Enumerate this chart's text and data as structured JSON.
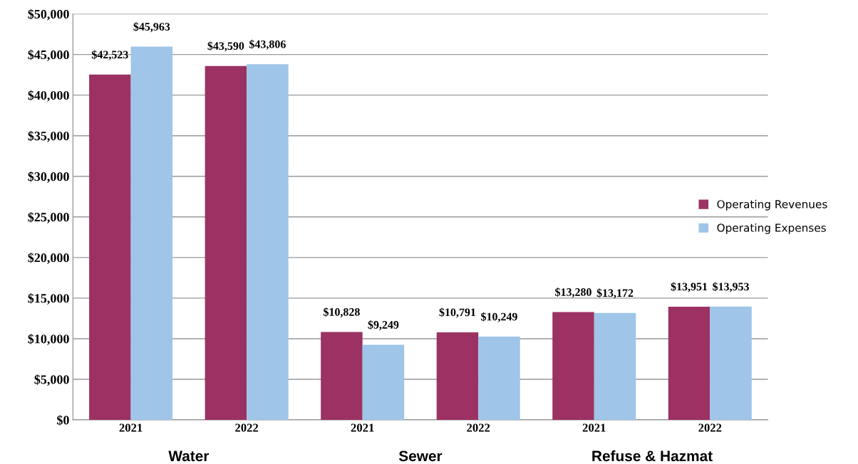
{
  "chart_data": {
    "type": "bar",
    "categories": [
      "2021",
      "2022",
      "2021",
      "2022",
      "2021",
      "2022"
    ],
    "series": [
      {
        "name": "Operating Revenues",
        "color": "#9b3263",
        "values": [
          42523,
          43590,
          10828,
          10791,
          13280,
          13951
        ],
        "value_labels": [
          "$42,523",
          "$43,590",
          "$10,828",
          "$10,791",
          "$13,280",
          "$13,951"
        ]
      },
      {
        "name": "Operating Expenses",
        "color": "#9fc5e8",
        "values": [
          45963,
          43806,
          9249,
          10249,
          13172,
          13953
        ],
        "value_labels": [
          "$45,963",
          "$43,806",
          "$9,249",
          "$10,249",
          "$13,172",
          "$13,953"
        ]
      }
    ],
    "annotations": [
      "Water",
      "Sewer",
      "Refuse & Hazmat"
    ],
    "ylim": [
      0,
      50000
    ],
    "yticks": [
      {
        "value": 0,
        "label": "$0"
      },
      {
        "value": 5000,
        "label": "$5,000"
      },
      {
        "value": 10000,
        "label": "$10,000"
      },
      {
        "value": 15000,
        "label": "$15,000"
      },
      {
        "value": 20000,
        "label": "$20,000"
      },
      {
        "value": 25000,
        "label": "$25,000"
      },
      {
        "value": 30000,
        "label": "$30,000"
      },
      {
        "value": 35000,
        "label": "$35,000"
      },
      {
        "value": 40000,
        "label": "$40,000"
      },
      {
        "value": 45000,
        "label": "$45,000"
      },
      {
        "value": 50000,
        "label": "$50,000"
      }
    ],
    "grid": "y",
    "legend": "right"
  }
}
